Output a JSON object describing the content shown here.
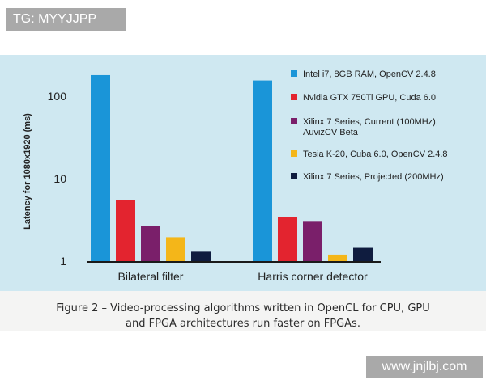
{
  "watermarks": {
    "top_left": "TG: MYYJJPP",
    "bottom_right": "www.jnjlbj.com"
  },
  "caption": {
    "line1": "Figure 2 – Video-processing algorithms written in OpenCL for CPU, GPU",
    "line2": "and FPGA architectures run faster on FPGAs."
  },
  "chart_data": {
    "type": "bar",
    "title": "",
    "xlabel": "",
    "ylabel": "Latency for 1080x1920 (ms)",
    "yscale": "log",
    "ylim": [
      1,
      200
    ],
    "yticks": [
      1,
      10,
      100
    ],
    "ytick_labels": [
      "1",
      "10",
      "100"
    ],
    "grid": false,
    "legend_position": "right",
    "categories": [
      "Bilateral filter",
      "Harris corner detector"
    ],
    "series": [
      {
        "name": "Intel i7, 8GB RAM, OpenCV 2.4.8",
        "color": "#1a95d8",
        "values": [
          180,
          155
        ]
      },
      {
        "name": "Nvidia GTX 750Ti GPU, Cuda 6.0",
        "color": "#e3242f",
        "values": [
          5.5,
          3.4
        ]
      },
      {
        "name": "Xilinx 7 Series, Current (100MHz), AuvizCV Beta",
        "color": "#7a1f6a",
        "values": [
          2.7,
          3.0
        ]
      },
      {
        "name": "Tesia K-20, Cuba 6.0, OpenCV 2.4.8",
        "color": "#f4b619",
        "values": [
          1.95,
          1.2
        ]
      },
      {
        "name": "Xilinx 7 Series, Projected (200MHz)",
        "color": "#0f1c3f",
        "values": [
          1.3,
          1.45
        ]
      }
    ]
  }
}
